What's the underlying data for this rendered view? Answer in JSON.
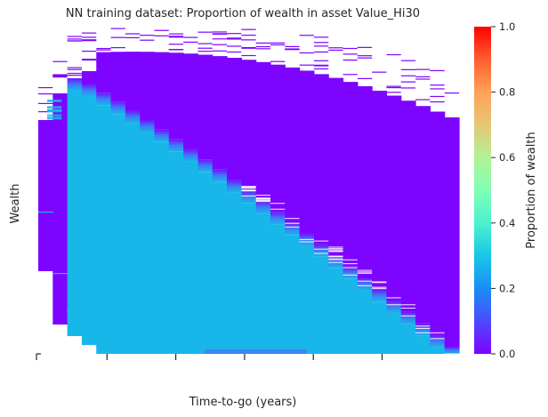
{
  "chart_data": {
    "type": "heatmap",
    "title": "NN training dataset: Proportion of wealth in asset Value_Hi30",
    "xlabel": "Time-to-go (years)",
    "ylabel": "Wealth",
    "colormap": "rainbow",
    "colorbar": {
      "label": "Proportion of wealth",
      "min": 0.0,
      "max": 1.0,
      "ticks": [
        "0.0",
        "0.2",
        "0.4",
        "0.6",
        "0.8",
        "1.0"
      ]
    },
    "x_axis": {
      "tick_count": 6,
      "tick_labels_visible": false
    },
    "y_axis": {
      "tick_labels_visible": false
    },
    "grid": false,
    "description_of_values": {
      "lower_region_proportion": 0.18,
      "upper_right_region_proportion": 0.0,
      "transition_band_proportion": 0.1
    }
  }
}
